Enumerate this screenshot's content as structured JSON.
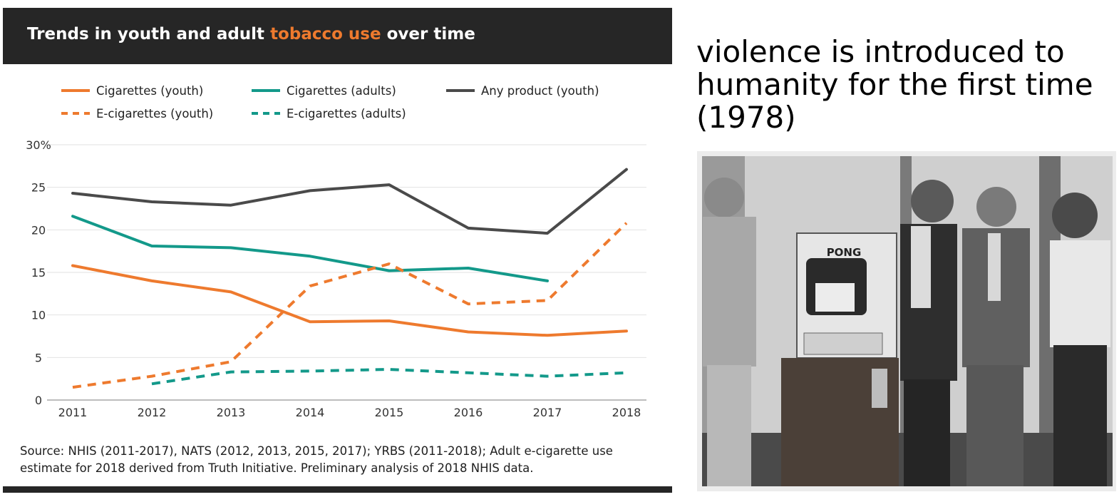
{
  "chart_data": {
    "type": "line",
    "title_parts": [
      {
        "text": "Trends in youth and adult ",
        "highlight": false
      },
      {
        "text": "tobacco use",
        "highlight": true
      },
      {
        "text": " over time",
        "highlight": false
      }
    ],
    "highlight_color": "#ee7a2e",
    "x": [
      "2011",
      "2012",
      "2013",
      "2014",
      "2015",
      "2016",
      "2017",
      "2018"
    ],
    "ylim": [
      0,
      30
    ],
    "yticks": [
      "0",
      "5",
      "10",
      "15",
      "20",
      "25",
      "30%"
    ],
    "grid": true,
    "legend_position": "top",
    "series": [
      {
        "name": "Cigarettes (youth)",
        "color": "#ee7a2e",
        "dashed": false,
        "values": [
          15.8,
          14.0,
          12.7,
          9.2,
          9.3,
          8.0,
          7.6,
          8.1
        ]
      },
      {
        "name": "Cigarettes (adults)",
        "color": "#13998a",
        "dashed": false,
        "values": [
          21.6,
          18.1,
          17.9,
          16.9,
          15.2,
          15.5,
          14.0,
          null
        ]
      },
      {
        "name": "Any product (youth)",
        "color": "#4a4a4a",
        "dashed": false,
        "values": [
          24.3,
          23.3,
          22.9,
          24.6,
          25.3,
          20.2,
          19.6,
          27.1
        ]
      },
      {
        "name": "E-cigarettes (youth)",
        "color": "#ee7a2e",
        "dashed": true,
        "values": [
          1.5,
          2.8,
          4.5,
          13.4,
          16.0,
          11.3,
          11.7,
          20.8
        ]
      },
      {
        "name": "E-cigarettes (adults)",
        "color": "#13998a",
        "dashed": true,
        "values": [
          null,
          1.9,
          3.3,
          3.4,
          3.6,
          3.2,
          2.8,
          3.2
        ]
      }
    ],
    "source": "Source: NHIS (2011-2017), NATS (2012, 2013, 2015, 2017); YRBS (2011-2018); Adult e-cigarette use estimate for 2018 derived from Truth Initiative. Preliminary analysis of 2018 NHIS data."
  },
  "meme": {
    "caption": "violence is introduced to humanity for the first time (1978)",
    "cabinet_label": "PONG"
  }
}
